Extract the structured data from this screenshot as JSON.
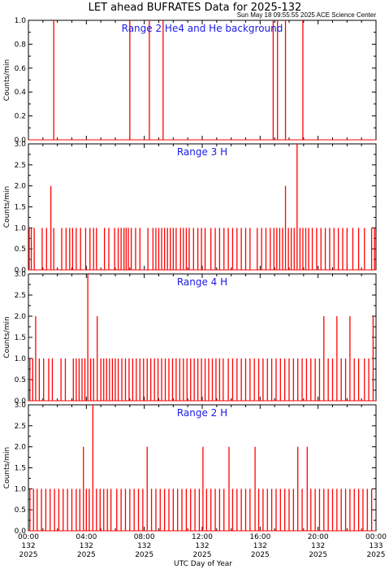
{
  "figure": {
    "title": "LET ahead BUFRATES Data for 2025-132",
    "timestamp": "Sun May 18 09:55:55 2025 ACE Science Center",
    "xlabel": "UTC Day of Year",
    "x_ticks": [
      {
        "hour": 0,
        "time": "00:00",
        "doy": "132",
        "year": "2025"
      },
      {
        "hour": 4,
        "time": "04:00",
        "doy": "132",
        "year": "2025"
      },
      {
        "hour": 8,
        "time": "08:00",
        "doy": "132",
        "year": "2025"
      },
      {
        "hour": 12,
        "time": "12:00",
        "doy": "132",
        "year": "2025"
      },
      {
        "hour": 16,
        "time": "16:00",
        "doy": "132",
        "year": "2025"
      },
      {
        "hour": 20,
        "time": "20:00",
        "doy": "132",
        "year": "2025"
      },
      {
        "hour": 24,
        "time": "00:00",
        "doy": "133",
        "year": "2025"
      }
    ],
    "line_color": "#ff0000",
    "title_color": "#1a1ae6"
  },
  "chart_data": [
    {
      "type": "line",
      "title": "Range 2 He4 and He background",
      "ylabel": "Counts/min",
      "xlim": [
        0,
        24
      ],
      "ylim": [
        0,
        1.0
      ],
      "y_ticks": [
        "0.0",
        "0.2",
        "0.4",
        "0.6",
        "0.8",
        "1.0"
      ],
      "y_tick_values": [
        0,
        0.2,
        0.4,
        0.6,
        0.8,
        1.0
      ],
      "baseline": 0,
      "spikes": [
        {
          "x": 1.75,
          "y": 1
        },
        {
          "x": 7.0,
          "y": 1
        },
        {
          "x": 8.35,
          "y": 1
        },
        {
          "x": 9.3,
          "y": 1
        },
        {
          "x": 16.9,
          "y": 1
        },
        {
          "x": 17.2,
          "y": 1
        },
        {
          "x": 17.75,
          "y": 1
        },
        {
          "x": 18.95,
          "y": 1
        }
      ]
    },
    {
      "type": "line",
      "title": "Range 3 H",
      "ylabel": "Counts/min",
      "xlim": [
        0,
        24
      ],
      "ylim": [
        0,
        3.0
      ],
      "y_ticks": [
        "0.0",
        "0.5",
        "1.0",
        "1.5",
        "2.0",
        "2.5",
        "3.0"
      ],
      "y_tick_values": [
        0,
        0.5,
        1.0,
        1.5,
        2.0,
        2.5,
        3.0
      ],
      "baseline": 0,
      "spikes": [
        {
          "x": 0.05,
          "y": 1
        },
        {
          "x": 0.2,
          "y": 1
        },
        {
          "x": 0.4,
          "y": 1
        },
        {
          "x": 0.95,
          "y": 1
        },
        {
          "x": 1.25,
          "y": 1
        },
        {
          "x": 1.55,
          "y": 2
        },
        {
          "x": 1.75,
          "y": 1
        },
        {
          "x": 2.3,
          "y": 1
        },
        {
          "x": 2.6,
          "y": 1
        },
        {
          "x": 2.85,
          "y": 1
        },
        {
          "x": 3.05,
          "y": 1
        },
        {
          "x": 3.3,
          "y": 1
        },
        {
          "x": 3.6,
          "y": 1
        },
        {
          "x": 3.95,
          "y": 1
        },
        {
          "x": 4.25,
          "y": 1
        },
        {
          "x": 4.5,
          "y": 1
        },
        {
          "x": 4.7,
          "y": 1
        },
        {
          "x": 5.25,
          "y": 1
        },
        {
          "x": 5.55,
          "y": 1
        },
        {
          "x": 5.95,
          "y": 1
        },
        {
          "x": 6.2,
          "y": 1
        },
        {
          "x": 6.4,
          "y": 1
        },
        {
          "x": 6.6,
          "y": 1
        },
        {
          "x": 6.75,
          "y": 1
        },
        {
          "x": 6.9,
          "y": 1
        },
        {
          "x": 7.1,
          "y": 1
        },
        {
          "x": 7.4,
          "y": 1
        },
        {
          "x": 7.7,
          "y": 1
        },
        {
          "x": 8.25,
          "y": 1
        },
        {
          "x": 8.6,
          "y": 1
        },
        {
          "x": 8.8,
          "y": 1
        },
        {
          "x": 9.0,
          "y": 1
        },
        {
          "x": 9.2,
          "y": 1
        },
        {
          "x": 9.4,
          "y": 1
        },
        {
          "x": 9.6,
          "y": 1
        },
        {
          "x": 9.8,
          "y": 1
        },
        {
          "x": 10.0,
          "y": 1
        },
        {
          "x": 10.2,
          "y": 1
        },
        {
          "x": 10.5,
          "y": 1
        },
        {
          "x": 10.7,
          "y": 1
        },
        {
          "x": 10.9,
          "y": 1
        },
        {
          "x": 11.1,
          "y": 1
        },
        {
          "x": 11.4,
          "y": 1
        },
        {
          "x": 11.7,
          "y": 1
        },
        {
          "x": 11.95,
          "y": 1
        },
        {
          "x": 12.2,
          "y": 1
        },
        {
          "x": 12.6,
          "y": 1
        },
        {
          "x": 12.9,
          "y": 1
        },
        {
          "x": 13.2,
          "y": 1
        },
        {
          "x": 13.5,
          "y": 1
        },
        {
          "x": 13.8,
          "y": 1
        },
        {
          "x": 14.1,
          "y": 1
        },
        {
          "x": 14.4,
          "y": 1
        },
        {
          "x": 14.7,
          "y": 1
        },
        {
          "x": 15.0,
          "y": 1
        },
        {
          "x": 15.3,
          "y": 1
        },
        {
          "x": 15.8,
          "y": 1
        },
        {
          "x": 16.1,
          "y": 1
        },
        {
          "x": 16.4,
          "y": 1
        },
        {
          "x": 16.7,
          "y": 1
        },
        {
          "x": 16.95,
          "y": 1
        },
        {
          "x": 17.15,
          "y": 1
        },
        {
          "x": 17.35,
          "y": 1
        },
        {
          "x": 17.55,
          "y": 1
        },
        {
          "x": 17.75,
          "y": 2
        },
        {
          "x": 17.95,
          "y": 1
        },
        {
          "x": 18.15,
          "y": 1
        },
        {
          "x": 18.35,
          "y": 1
        },
        {
          "x": 18.55,
          "y": 3
        },
        {
          "x": 18.75,
          "y": 1
        },
        {
          "x": 18.95,
          "y": 1
        },
        {
          "x": 19.15,
          "y": 1
        },
        {
          "x": 19.35,
          "y": 1
        },
        {
          "x": 19.6,
          "y": 1
        },
        {
          "x": 19.9,
          "y": 1
        },
        {
          "x": 20.2,
          "y": 1
        },
        {
          "x": 20.5,
          "y": 1
        },
        {
          "x": 20.8,
          "y": 1
        },
        {
          "x": 21.1,
          "y": 1
        },
        {
          "x": 21.4,
          "y": 1
        },
        {
          "x": 21.7,
          "y": 1
        },
        {
          "x": 22.0,
          "y": 1
        },
        {
          "x": 22.4,
          "y": 1
        },
        {
          "x": 22.8,
          "y": 1
        },
        {
          "x": 23.2,
          "y": 1
        },
        {
          "x": 23.7,
          "y": 1
        },
        {
          "x": 23.9,
          "y": 1
        }
      ]
    },
    {
      "type": "line",
      "title": "Range 4 H",
      "ylabel": "Counts/min",
      "xlim": [
        0,
        24
      ],
      "ylim": [
        0,
        3.0
      ],
      "y_ticks": [
        "0.0",
        "0.5",
        "1.0",
        "1.5",
        "2.0",
        "2.5",
        "3.0"
      ],
      "y_tick_values": [
        0,
        0.5,
        1.0,
        1.5,
        2.0,
        2.5,
        3.0
      ],
      "baseline": 0,
      "spikes": [
        {
          "x": 0.1,
          "y": 1
        },
        {
          "x": 0.3,
          "y": 1
        },
        {
          "x": 0.5,
          "y": 2
        },
        {
          "x": 0.75,
          "y": 1
        },
        {
          "x": 1.05,
          "y": 1
        },
        {
          "x": 1.4,
          "y": 1
        },
        {
          "x": 1.65,
          "y": 1
        },
        {
          "x": 2.25,
          "y": 1
        },
        {
          "x": 2.55,
          "y": 1
        },
        {
          "x": 3.1,
          "y": 1
        },
        {
          "x": 3.3,
          "y": 1
        },
        {
          "x": 3.5,
          "y": 1
        },
        {
          "x": 3.7,
          "y": 1
        },
        {
          "x": 3.9,
          "y": 1
        },
        {
          "x": 4.1,
          "y": 3
        },
        {
          "x": 4.3,
          "y": 1
        },
        {
          "x": 4.5,
          "y": 1
        },
        {
          "x": 4.75,
          "y": 2
        },
        {
          "x": 5.0,
          "y": 1
        },
        {
          "x": 5.2,
          "y": 1
        },
        {
          "x": 5.4,
          "y": 1
        },
        {
          "x": 5.6,
          "y": 1
        },
        {
          "x": 5.8,
          "y": 1
        },
        {
          "x": 6.0,
          "y": 1
        },
        {
          "x": 6.2,
          "y": 1
        },
        {
          "x": 6.45,
          "y": 1
        },
        {
          "x": 6.7,
          "y": 1
        },
        {
          "x": 6.95,
          "y": 1
        },
        {
          "x": 7.2,
          "y": 1
        },
        {
          "x": 7.45,
          "y": 1
        },
        {
          "x": 7.7,
          "y": 1
        },
        {
          "x": 7.95,
          "y": 1
        },
        {
          "x": 8.2,
          "y": 1
        },
        {
          "x": 8.45,
          "y": 1
        },
        {
          "x": 8.7,
          "y": 1
        },
        {
          "x": 8.95,
          "y": 1
        },
        {
          "x": 9.2,
          "y": 1
        },
        {
          "x": 9.45,
          "y": 1
        },
        {
          "x": 9.7,
          "y": 1
        },
        {
          "x": 9.95,
          "y": 1
        },
        {
          "x": 10.2,
          "y": 1
        },
        {
          "x": 10.45,
          "y": 1
        },
        {
          "x": 10.7,
          "y": 1
        },
        {
          "x": 10.95,
          "y": 1
        },
        {
          "x": 11.2,
          "y": 1
        },
        {
          "x": 11.45,
          "y": 1
        },
        {
          "x": 11.7,
          "y": 1
        },
        {
          "x": 11.95,
          "y": 1
        },
        {
          "x": 12.2,
          "y": 1
        },
        {
          "x": 12.45,
          "y": 1
        },
        {
          "x": 12.7,
          "y": 1
        },
        {
          "x": 12.95,
          "y": 1
        },
        {
          "x": 13.2,
          "y": 1
        },
        {
          "x": 13.45,
          "y": 1
        },
        {
          "x": 13.8,
          "y": 1
        },
        {
          "x": 14.1,
          "y": 1
        },
        {
          "x": 14.4,
          "y": 1
        },
        {
          "x": 14.7,
          "y": 1
        },
        {
          "x": 15.0,
          "y": 1
        },
        {
          "x": 15.3,
          "y": 1
        },
        {
          "x": 15.6,
          "y": 1
        },
        {
          "x": 15.9,
          "y": 1
        },
        {
          "x": 16.2,
          "y": 1
        },
        {
          "x": 16.5,
          "y": 1
        },
        {
          "x": 16.8,
          "y": 1
        },
        {
          "x": 17.1,
          "y": 1
        },
        {
          "x": 17.4,
          "y": 1
        },
        {
          "x": 17.7,
          "y": 1
        },
        {
          "x": 18.0,
          "y": 1
        },
        {
          "x": 18.3,
          "y": 1
        },
        {
          "x": 18.6,
          "y": 1
        },
        {
          "x": 18.9,
          "y": 1
        },
        {
          "x": 19.2,
          "y": 1
        },
        {
          "x": 19.5,
          "y": 1
        },
        {
          "x": 19.8,
          "y": 1
        },
        {
          "x": 20.1,
          "y": 1
        },
        {
          "x": 20.4,
          "y": 2
        },
        {
          "x": 20.7,
          "y": 1
        },
        {
          "x": 21.0,
          "y": 1
        },
        {
          "x": 21.3,
          "y": 2
        },
        {
          "x": 21.6,
          "y": 1
        },
        {
          "x": 21.9,
          "y": 1
        },
        {
          "x": 22.2,
          "y": 2
        },
        {
          "x": 22.5,
          "y": 1
        },
        {
          "x": 22.8,
          "y": 1
        },
        {
          "x": 23.2,
          "y": 1
        },
        {
          "x": 23.5,
          "y": 1
        },
        {
          "x": 23.8,
          "y": 2
        }
      ]
    },
    {
      "type": "line",
      "title": "Range 2 H",
      "ylabel": "Counts/min",
      "xlim": [
        0,
        24
      ],
      "ylim": [
        0,
        3.0
      ],
      "y_ticks": [
        "0.0",
        "0.5",
        "1.0",
        "1.5",
        "2.0",
        "2.5",
        "3.0"
      ],
      "y_tick_values": [
        0,
        0.5,
        1.0,
        1.5,
        2.0,
        2.5,
        3.0
      ],
      "baseline": 0,
      "spikes": [
        {
          "x": 0.1,
          "y": 1
        },
        {
          "x": 0.35,
          "y": 1
        },
        {
          "x": 0.6,
          "y": 1
        },
        {
          "x": 0.9,
          "y": 1
        },
        {
          "x": 1.2,
          "y": 1
        },
        {
          "x": 1.5,
          "y": 1
        },
        {
          "x": 1.8,
          "y": 1
        },
        {
          "x": 2.1,
          "y": 1
        },
        {
          "x": 2.4,
          "y": 1
        },
        {
          "x": 2.7,
          "y": 1
        },
        {
          "x": 3.0,
          "y": 1
        },
        {
          "x": 3.3,
          "y": 1
        },
        {
          "x": 3.55,
          "y": 1
        },
        {
          "x": 3.8,
          "y": 2
        },
        {
          "x": 4.0,
          "y": 1
        },
        {
          "x": 4.2,
          "y": 1
        },
        {
          "x": 4.45,
          "y": 3
        },
        {
          "x": 4.7,
          "y": 1
        },
        {
          "x": 4.95,
          "y": 1
        },
        {
          "x": 5.2,
          "y": 1
        },
        {
          "x": 5.45,
          "y": 1
        },
        {
          "x": 5.7,
          "y": 1
        },
        {
          "x": 6.1,
          "y": 1
        },
        {
          "x": 6.4,
          "y": 1
        },
        {
          "x": 6.7,
          "y": 1
        },
        {
          "x": 7.0,
          "y": 1
        },
        {
          "x": 7.3,
          "y": 1
        },
        {
          "x": 7.6,
          "y": 1
        },
        {
          "x": 7.9,
          "y": 1
        },
        {
          "x": 8.2,
          "y": 2
        },
        {
          "x": 8.5,
          "y": 1
        },
        {
          "x": 8.8,
          "y": 1
        },
        {
          "x": 9.1,
          "y": 1
        },
        {
          "x": 9.4,
          "y": 1
        },
        {
          "x": 9.7,
          "y": 1
        },
        {
          "x": 10.0,
          "y": 1
        },
        {
          "x": 10.3,
          "y": 1
        },
        {
          "x": 10.6,
          "y": 1
        },
        {
          "x": 10.9,
          "y": 1
        },
        {
          "x": 11.2,
          "y": 1
        },
        {
          "x": 11.5,
          "y": 1
        },
        {
          "x": 11.8,
          "y": 1
        },
        {
          "x": 12.05,
          "y": 2
        },
        {
          "x": 12.3,
          "y": 1
        },
        {
          "x": 12.6,
          "y": 1
        },
        {
          "x": 12.9,
          "y": 1
        },
        {
          "x": 13.2,
          "y": 1
        },
        {
          "x": 13.5,
          "y": 1
        },
        {
          "x": 13.85,
          "y": 2
        },
        {
          "x": 14.1,
          "y": 1
        },
        {
          "x": 14.4,
          "y": 1
        },
        {
          "x": 14.7,
          "y": 1
        },
        {
          "x": 15.0,
          "y": 1
        },
        {
          "x": 15.3,
          "y": 1
        },
        {
          "x": 15.65,
          "y": 2
        },
        {
          "x": 15.9,
          "y": 1
        },
        {
          "x": 16.2,
          "y": 1
        },
        {
          "x": 16.5,
          "y": 1
        },
        {
          "x": 16.8,
          "y": 1
        },
        {
          "x": 17.1,
          "y": 1
        },
        {
          "x": 17.4,
          "y": 1
        },
        {
          "x": 17.7,
          "y": 1
        },
        {
          "x": 18.0,
          "y": 1
        },
        {
          "x": 18.3,
          "y": 1
        },
        {
          "x": 18.6,
          "y": 2
        },
        {
          "x": 18.9,
          "y": 1
        },
        {
          "x": 19.25,
          "y": 2
        },
        {
          "x": 19.5,
          "y": 1
        },
        {
          "x": 19.8,
          "y": 1
        },
        {
          "x": 20.1,
          "y": 1
        },
        {
          "x": 20.4,
          "y": 1
        },
        {
          "x": 20.7,
          "y": 1
        },
        {
          "x": 21.0,
          "y": 1
        },
        {
          "x": 21.3,
          "y": 1
        },
        {
          "x": 21.6,
          "y": 1
        },
        {
          "x": 21.9,
          "y": 1
        },
        {
          "x": 22.2,
          "y": 1
        },
        {
          "x": 22.5,
          "y": 1
        },
        {
          "x": 22.8,
          "y": 1
        },
        {
          "x": 23.1,
          "y": 1
        },
        {
          "x": 23.4,
          "y": 1
        },
        {
          "x": 23.7,
          "y": 1
        }
      ]
    }
  ]
}
